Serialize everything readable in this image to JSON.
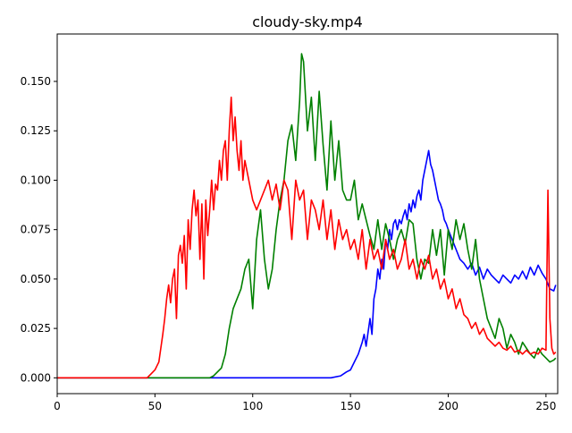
{
  "chart_data": {
    "type": "line",
    "title": "cloudy-sky.mp4",
    "xlabel": "",
    "ylabel": "",
    "xlim": [
      0,
      256
    ],
    "ylim": [
      -0.008,
      0.174
    ],
    "grid": false,
    "legend": "none",
    "x_ticks": [
      0,
      50,
      100,
      150,
      200,
      250
    ],
    "y_ticks": [
      0.0,
      0.025,
      0.05,
      0.075,
      0.1,
      0.125,
      0.15
    ],
    "y_tick_labels": [
      "0.000",
      "0.025",
      "0.050",
      "0.075",
      "0.100",
      "0.125",
      "0.150"
    ],
    "series": [
      {
        "color": "#0000ff",
        "x": [
          0,
          140,
          145,
          148,
          150,
          152,
          154,
          156,
          157,
          158,
          160,
          161,
          162,
          163,
          164,
          165,
          166,
          167,
          168,
          169,
          170,
          171,
          172,
          173,
          174,
          175,
          176,
          177,
          178,
          179,
          180,
          181,
          182,
          183,
          184,
          185,
          186,
          187,
          188,
          189,
          190,
          191,
          192,
          193,
          194,
          195,
          196,
          197,
          198,
          199,
          200,
          202,
          204,
          206,
          208,
          210,
          212,
          214,
          216,
          218,
          220,
          222,
          224,
          226,
          228,
          230,
          232,
          234,
          236,
          238,
          240,
          242,
          244,
          246,
          248,
          250,
          252,
          254,
          255
        ],
        "values": [
          0,
          0,
          0.001,
          0.003,
          0.004,
          0.008,
          0.012,
          0.018,
          0.022,
          0.016,
          0.03,
          0.022,
          0.04,
          0.045,
          0.055,
          0.05,
          0.06,
          0.055,
          0.07,
          0.065,
          0.075,
          0.07,
          0.078,
          0.08,
          0.075,
          0.08,
          0.078,
          0.082,
          0.085,
          0.08,
          0.088,
          0.084,
          0.09,
          0.086,
          0.092,
          0.095,
          0.09,
          0.1,
          0.105,
          0.11,
          0.115,
          0.108,
          0.105,
          0.1,
          0.095,
          0.09,
          0.088,
          0.085,
          0.08,
          0.078,
          0.075,
          0.07,
          0.065,
          0.06,
          0.058,
          0.055,
          0.058,
          0.052,
          0.056,
          0.05,
          0.055,
          0.052,
          0.05,
          0.048,
          0.052,
          0.05,
          0.048,
          0.052,
          0.05,
          0.054,
          0.05,
          0.056,
          0.052,
          0.057,
          0.053,
          0.05,
          0.045,
          0.044,
          0.047
        ]
      },
      {
        "color": "#008000",
        "x": [
          0,
          78,
          80,
          82,
          84,
          86,
          88,
          90,
          92,
          94,
          96,
          98,
          100,
          102,
          104,
          106,
          108,
          110,
          112,
          114,
          116,
          118,
          120,
          122,
          124,
          125,
          126,
          128,
          130,
          132,
          134,
          136,
          138,
          140,
          142,
          144,
          146,
          148,
          150,
          152,
          154,
          156,
          158,
          160,
          162,
          164,
          166,
          168,
          170,
          172,
          174,
          176,
          178,
          180,
          182,
          184,
          186,
          188,
          190,
          192,
          194,
          196,
          198,
          200,
          202,
          204,
          206,
          208,
          210,
          212,
          214,
          216,
          218,
          220,
          222,
          224,
          226,
          228,
          230,
          232,
          234,
          236,
          238,
          240,
          242,
          244,
          246,
          248,
          250,
          252,
          254,
          255
        ],
        "values": [
          0,
          0,
          0.001,
          0.003,
          0.005,
          0.012,
          0.025,
          0.035,
          0.04,
          0.045,
          0.055,
          0.06,
          0.035,
          0.07,
          0.085,
          0.06,
          0.045,
          0.055,
          0.075,
          0.09,
          0.1,
          0.12,
          0.128,
          0.11,
          0.14,
          0.164,
          0.16,
          0.125,
          0.142,
          0.11,
          0.145,
          0.118,
          0.095,
          0.13,
          0.1,
          0.12,
          0.095,
          0.09,
          0.09,
          0.1,
          0.08,
          0.088,
          0.08,
          0.072,
          0.065,
          0.08,
          0.065,
          0.078,
          0.07,
          0.06,
          0.07,
          0.075,
          0.068,
          0.08,
          0.078,
          0.06,
          0.05,
          0.06,
          0.058,
          0.075,
          0.062,
          0.075,
          0.052,
          0.075,
          0.065,
          0.08,
          0.07,
          0.078,
          0.065,
          0.055,
          0.07,
          0.05,
          0.04,
          0.03,
          0.025,
          0.02,
          0.03,
          0.025,
          0.015,
          0.022,
          0.018,
          0.012,
          0.018,
          0.015,
          0.012,
          0.01,
          0.015,
          0.012,
          0.01,
          0.008,
          0.009,
          0.01
        ]
      },
      {
        "color": "#ff0000",
        "x": [
          0,
          46,
          48,
          50,
          51,
          52,
          53,
          54,
          55,
          56,
          57,
          58,
          59,
          60,
          61,
          62,
          63,
          64,
          65,
          66,
          67,
          68,
          69,
          70,
          71,
          72,
          73,
          74,
          75,
          76,
          77,
          78,
          79,
          80,
          81,
          82,
          83,
          84,
          85,
          86,
          87,
          88,
          89,
          90,
          91,
          92,
          93,
          94,
          95,
          96,
          98,
          100,
          102,
          104,
          106,
          108,
          110,
          112,
          114,
          116,
          118,
          120,
          122,
          124,
          126,
          128,
          130,
          132,
          134,
          136,
          138,
          140,
          142,
          144,
          146,
          148,
          150,
          152,
          154,
          156,
          158,
          160,
          162,
          164,
          166,
          168,
          170,
          172,
          174,
          176,
          178,
          180,
          182,
          184,
          186,
          188,
          190,
          192,
          194,
          196,
          198,
          200,
          202,
          204,
          206,
          208,
          210,
          212,
          214,
          216,
          218,
          220,
          222,
          224,
          226,
          228,
          230,
          232,
          234,
          236,
          238,
          240,
          242,
          244,
          246,
          248,
          250,
          251,
          252,
          253,
          254,
          255
        ],
        "values": [
          0,
          0,
          0.002,
          0.004,
          0.006,
          0.008,
          0.015,
          0.022,
          0.03,
          0.04,
          0.047,
          0.038,
          0.05,
          0.055,
          0.03,
          0.062,
          0.067,
          0.058,
          0.072,
          0.045,
          0.08,
          0.065,
          0.085,
          0.095,
          0.082,
          0.09,
          0.06,
          0.088,
          0.05,
          0.09,
          0.072,
          0.085,
          0.1,
          0.085,
          0.098,
          0.095,
          0.11,
          0.1,
          0.115,
          0.12,
          0.1,
          0.125,
          0.142,
          0.12,
          0.132,
          0.115,
          0.105,
          0.12,
          0.1,
          0.11,
          0.1,
          0.09,
          0.085,
          0.09,
          0.095,
          0.1,
          0.09,
          0.098,
          0.085,
          0.1,
          0.095,
          0.07,
          0.1,
          0.09,
          0.095,
          0.07,
          0.09,
          0.085,
          0.075,
          0.09,
          0.07,
          0.085,
          0.065,
          0.08,
          0.07,
          0.075,
          0.065,
          0.07,
          0.06,
          0.075,
          0.055,
          0.07,
          0.06,
          0.065,
          0.055,
          0.07,
          0.06,
          0.065,
          0.055,
          0.06,
          0.07,
          0.055,
          0.06,
          0.05,
          0.06,
          0.055,
          0.062,
          0.05,
          0.055,
          0.045,
          0.05,
          0.04,
          0.045,
          0.035,
          0.04,
          0.032,
          0.03,
          0.025,
          0.028,
          0.022,
          0.025,
          0.02,
          0.018,
          0.016,
          0.018,
          0.015,
          0.014,
          0.016,
          0.013,
          0.014,
          0.012,
          0.014,
          0.012,
          0.013,
          0.012,
          0.015,
          0.014,
          0.095,
          0.03,
          0.015,
          0.012,
          0.013
        ]
      }
    ]
  }
}
